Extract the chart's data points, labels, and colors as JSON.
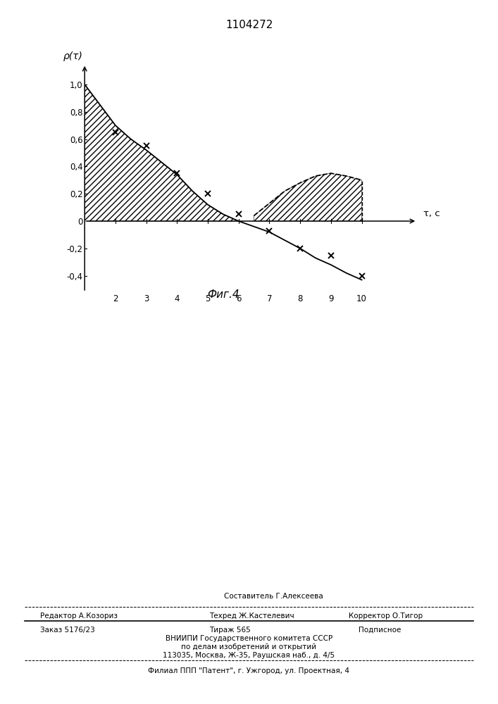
{
  "title": "1104272",
  "ylabel": "ρ(τ)",
  "xlabel": "τ, с",
  "fig_caption": "Фиг.4",
  "main_curve_x": [
    1.0,
    1.5,
    2.0,
    2.5,
    3.0,
    3.5,
    4.0,
    4.5,
    5.0,
    5.5,
    6.0,
    6.5,
    7.0,
    7.5,
    8.0,
    8.5,
    9.0,
    9.5,
    10.0
  ],
  "main_curve_y": [
    1.0,
    0.85,
    0.7,
    0.6,
    0.52,
    0.43,
    0.34,
    0.22,
    0.12,
    0.05,
    0.0,
    -0.04,
    -0.08,
    -0.14,
    -0.2,
    -0.27,
    -0.32,
    -0.38,
    -0.43
  ],
  "data_points_x": [
    2.0,
    3.0,
    4.0,
    5.0,
    6.0,
    7.0,
    8.0,
    9.0,
    10.0
  ],
  "data_points_y": [
    0.65,
    0.55,
    0.35,
    0.2,
    0.05,
    -0.07,
    -0.2,
    -0.25,
    -0.4
  ],
  "dashed_curve_x": [
    6.5,
    7.0,
    7.5,
    8.0,
    8.5,
    9.0,
    9.5,
    10.0
  ],
  "dashed_curve_y": [
    0.04,
    0.13,
    0.22,
    0.28,
    0.33,
    0.35,
    0.33,
    0.3
  ],
  "fill1_x": [
    1.0,
    1.5,
    2.0,
    2.5,
    3.0,
    3.5,
    4.0,
    4.5,
    5.0,
    5.5,
    6.0
  ],
  "fill1_y": [
    1.0,
    0.85,
    0.7,
    0.6,
    0.52,
    0.43,
    0.34,
    0.22,
    0.12,
    0.05,
    0.0
  ],
  "fill2_x": [
    6.5,
    7.0,
    7.5,
    8.0,
    8.5,
    9.0,
    9.5,
    10.0
  ],
  "fill2_y": [
    0.04,
    0.13,
    0.22,
    0.28,
    0.33,
    0.35,
    0.33,
    0.3
  ],
  "yticks": [
    -0.4,
    -0.2,
    0.0,
    0.2,
    0.4,
    0.6,
    0.8,
    1.0
  ],
  "ytick_labels": [
    "-0,4",
    "-0,2",
    "0",
    "0,2",
    "0,4",
    "0,6",
    "0,8",
    "1,0"
  ],
  "xticks": [
    2,
    3,
    4,
    5,
    6,
    7,
    8,
    9,
    10
  ],
  "xlim": [
    1.0,
    12.0
  ],
  "ylim": [
    -0.52,
    1.18
  ],
  "footer_sestavitel_center": "Составитель Г.Алексеева",
  "footer_redaktor": "Редактор А.Козориз",
  "footer_tehred": "Техред Ж.Кастелевич",
  "footer_korrektor": "Корректор О.Тигор",
  "footer_zakaz": "Заказ 5176/23",
  "footer_tirazh": "Тираж 565",
  "footer_podpisnoe": "Подписное",
  "footer_vnipi": "ВНИИПИ Государственного комитета СССР",
  "footer_po_delam": "по делам изобретений и открытий",
  "footer_address": "113035, Москва, Ж-35, Раушская наб., д. 4/5",
  "footer_filial": "Филиал ППП \"Патент\", г. Ужгород, ул. Проектная, 4"
}
